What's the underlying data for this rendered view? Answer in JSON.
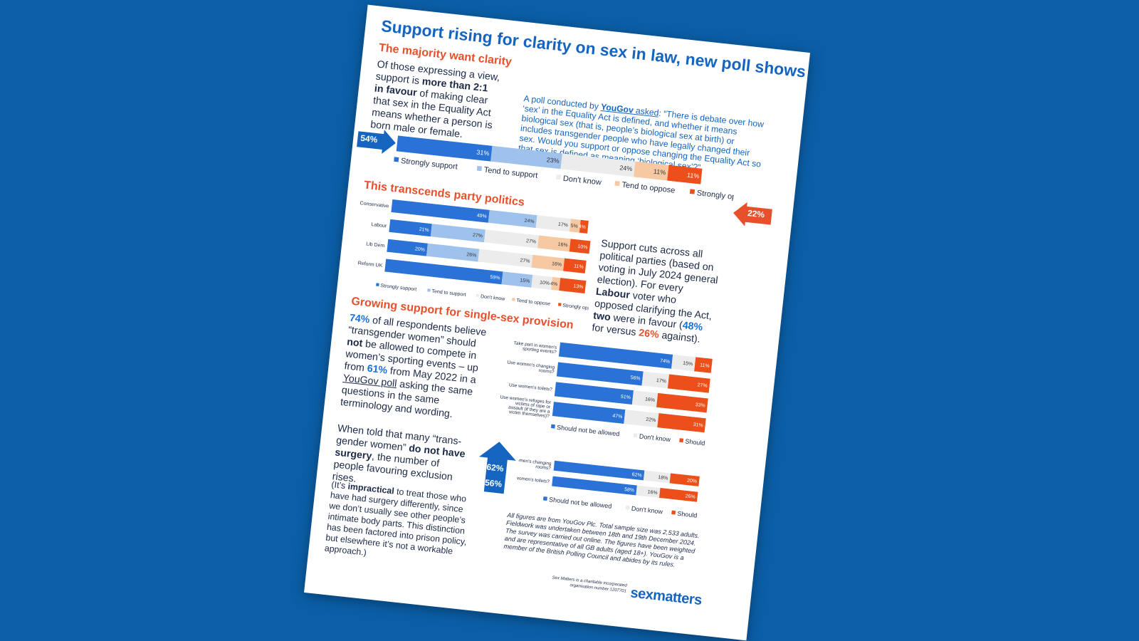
{
  "title": "Support rising for clarity on sex in law, new poll shows",
  "section1": {
    "heading": "The majority want clarity",
    "p1_a": "Of those expressing a view, support is ",
    "p1_b": "more than 2:1 in favour",
    "p1_c": " of making clear that sex in the Equality Act means whether a person is born male or female.",
    "quote_a": "A poll conducted by ",
    "quote_b": "YouGov",
    "quote_c": " asked",
    "quote_d": ": “There is debate over how ‘sex’ in the Equality Act is defined, and whether it means biological sex (that is, people’s biological sex at birth) or includes transgender people who have legally changed their sex. Would you support or oppose changing the Equality Act so that sex is defined as meaning ‘biological sex’?”",
    "badge_left": "54%",
    "badge_right": "22%"
  },
  "section2": {
    "heading": "This transcends party politics",
    "p_a": "Support cuts across all political parties (based on voting in July 2024 general election). For every ",
    "p_b": "Labour",
    "p_c": " voter who opposed clarifying the Act, ",
    "p_d": "two",
    "p_e": " were in favour (",
    "p_f": "48%",
    "p_g": " for versus ",
    "p_h": "26%",
    "p_i": " against)."
  },
  "section3": {
    "heading": "Growing support for single-sex provision",
    "p1_a": "74%",
    "p1_b": " of all respondents believe “transgender women” should ",
    "p1_c": "not",
    "p1_d": " be allowed to compete in women’s sporting events – up from ",
    "p1_e": "61%",
    "p1_f": " from May 2022 in a ",
    "p1_g": "YouGov poll",
    "p1_h": " asking the same questions in the same terminology and wording.",
    "p2_a": "When told that many “trans-gender women” ",
    "p2_b": "do not have surgery",
    "p2_c": ", the number of people favouring exclusion rises.",
    "p3_a": "(It’s ",
    "p3_b": "impractical",
    "p3_c": " to treat those who have had surgery differently, since we don’t usually see other people’s intimate body parts. This distinction has been factored into prison policy, but elsewhere it’s not a workable approach.)",
    "badge_top": "62%",
    "badge_bottom": "56%"
  },
  "footnote": "All figures are from YouGov Plc. Total sample size was 2,533 adults. Fieldwork was undertaken between 18th and 19th December 2024. The survey was carried out online. The figures have been weighted and are representative of all GB adults (aged 18+). YouGov is a member of the British Polling Council and abides by its rules.",
  "charity_note": "Sex Matters is a charitable incorporated organisation number 1207701",
  "logo": "sexmatters",
  "colors": {
    "background": "#0b5fa8",
    "title": "#1565c0",
    "heading": "#e8502b",
    "strongly_support": "#2a72d6",
    "tend_support": "#9ec2ec",
    "dont_know": "#ececec",
    "tend_oppose": "#f6c9a3",
    "strongly_oppose": "#ec4f1a"
  },
  "chart_data": [
    {
      "type": "bar",
      "orientation": "horizontal-stacked",
      "categories": [
        ""
      ],
      "series": [
        {
          "name": "Strongly support",
          "values": [
            31
          ]
        },
        {
          "name": "Tend to support",
          "values": [
            23
          ]
        },
        {
          "name": "Don't know",
          "values": [
            24
          ]
        },
        {
          "name": "Tend to oppose",
          "values": [
            11
          ]
        },
        {
          "name": "Strongly oppose",
          "values": [
            11
          ]
        }
      ],
      "legend": "bottom"
    },
    {
      "type": "bar",
      "orientation": "horizontal-stacked",
      "categories": [
        "Conservative",
        "Labour",
        "Lib Dem",
        "Reform UK"
      ],
      "series": [
        {
          "name": "Strongly support",
          "values": [
            49,
            21,
            20,
            59
          ]
        },
        {
          "name": "Tend to support",
          "values": [
            24,
            27,
            26,
            15
          ]
        },
        {
          "name": "Don't know",
          "values": [
            17,
            27,
            27,
            10
          ]
        },
        {
          "name": "Tend to oppose",
          "values": [
            5,
            16,
            16,
            4
          ]
        },
        {
          "name": "Strongly oppose",
          "values": [
            4,
            10,
            11,
            13
          ]
        }
      ],
      "legend": "bottom"
    },
    {
      "type": "bar",
      "orientation": "horizontal-stacked",
      "categories": [
        "Take part in women's sporting events?",
        "Use women's changing rooms?",
        "Use women's toilets?",
        "Use women's refuges for victims of rape or assault (if they are a victim themselves)?"
      ],
      "series": [
        {
          "name": "Should not be allowed",
          "values": [
            74,
            56,
            51,
            47
          ]
        },
        {
          "name": "Don't know",
          "values": [
            15,
            17,
            16,
            22
          ]
        },
        {
          "name": "Should be allowed",
          "values": [
            11,
            27,
            33,
            31
          ]
        }
      ],
      "legend": "bottom"
    },
    {
      "type": "bar",
      "orientation": "horizontal-stacked",
      "categories": [
        "Use women's changing rooms?",
        "Use women's toilets?"
      ],
      "series": [
        {
          "name": "Should not be allowed",
          "values": [
            62,
            58
          ]
        },
        {
          "name": "Don't know",
          "values": [
            18,
            16
          ]
        },
        {
          "name": "Should be allowed",
          "values": [
            20,
            26
          ]
        }
      ],
      "legend": "bottom"
    }
  ]
}
